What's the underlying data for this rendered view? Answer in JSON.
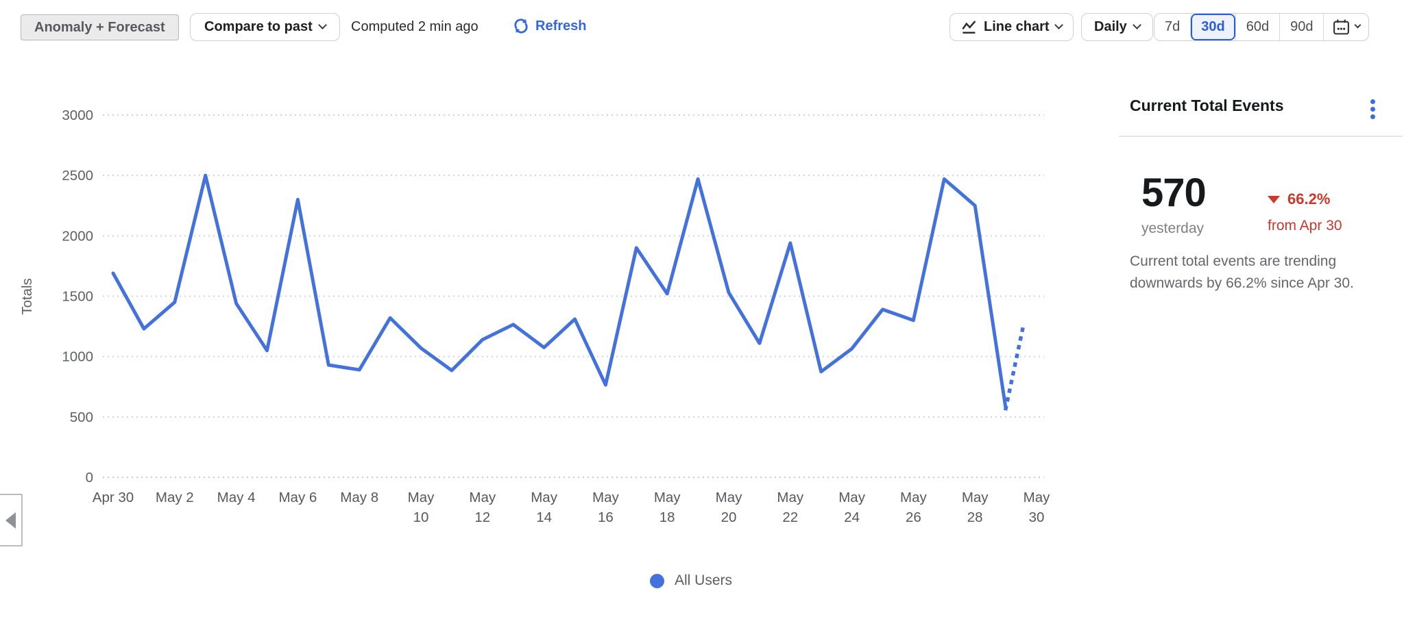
{
  "toolbar": {
    "anomaly_button": "Anomaly + Forecast",
    "compare_button": "Compare to past",
    "computed_text": "Computed 2 min ago",
    "refresh_label": "Refresh",
    "chart_type_button": "Line chart",
    "granularity_button": "Daily",
    "ranges": [
      "7d",
      "30d",
      "60d",
      "90d"
    ],
    "selected_range": "30d"
  },
  "summary": {
    "title": "Current Total Events",
    "value": "570",
    "value_caption": "yesterday",
    "delta": "66.2%",
    "delta_direction": "down",
    "delta_caption": "from Apr 30",
    "description_lines": [
      "Current total events are trending",
      "downwards by 66.2% since Apr 30."
    ]
  },
  "legend": {
    "items": [
      {
        "label": "All Users",
        "color": "#4472dd"
      }
    ]
  },
  "colors": {
    "accent_blue": "#3366e0",
    "line_blue": "#4472dd",
    "negative_red": "#d0362a",
    "selected_range_blue": "#2a5ed9"
  },
  "chart_data": {
    "type": "line",
    "title": "",
    "xlabel": "",
    "ylabel": "Totals",
    "ylim": [
      0,
      3000
    ],
    "yticks": [
      0,
      500,
      1000,
      1500,
      2000,
      2500,
      3000
    ],
    "grid": "dotted-horizontal",
    "legend_position": "bottom-center",
    "x": [
      "Apr 30",
      "May 1",
      "May 2",
      "May 3",
      "May 4",
      "May 5",
      "May 6",
      "May 7",
      "May 8",
      "May 9",
      "May 10",
      "May 11",
      "May 12",
      "May 13",
      "May 14",
      "May 15",
      "May 16",
      "May 17",
      "May 18",
      "May 19",
      "May 20",
      "May 21",
      "May 22",
      "May 23",
      "May 24",
      "May 25",
      "May 26",
      "May 27",
      "May 28",
      "May 29"
    ],
    "series": [
      {
        "name": "All Users",
        "color": "#4472dd",
        "values": [
          1690,
          1230,
          1450,
          2500,
          1440,
          1050,
          2300,
          930,
          890,
          1320,
          1070,
          885,
          1140,
          1265,
          1075,
          1310,
          765,
          1900,
          1520,
          2470,
          1530,
          1110,
          1940,
          875,
          1065,
          1390,
          1300,
          2470,
          2250,
          570
        ]
      }
    ],
    "forecast": {
      "style": "dotted",
      "x": [
        "May 29",
        "May 30"
      ],
      "values": [
        570,
        1290
      ]
    },
    "x_tick_labels": [
      {
        "t1": "Apr 30"
      },
      {
        "t1": "May 2"
      },
      {
        "t1": "May 4"
      },
      {
        "t1": "May 6"
      },
      {
        "t1": "May 8"
      },
      {
        "t1": "May",
        "t2": "10"
      },
      {
        "t1": "May",
        "t2": "12"
      },
      {
        "t1": "May",
        "t2": "14"
      },
      {
        "t1": "May",
        "t2": "16"
      },
      {
        "t1": "May",
        "t2": "18"
      },
      {
        "t1": "May",
        "t2": "20"
      },
      {
        "t1": "May",
        "t2": "22"
      },
      {
        "t1": "May",
        "t2": "24"
      },
      {
        "t1": "May",
        "t2": "26"
      },
      {
        "t1": "May",
        "t2": "28"
      },
      {
        "t1": "May",
        "t2": "30"
      }
    ]
  }
}
